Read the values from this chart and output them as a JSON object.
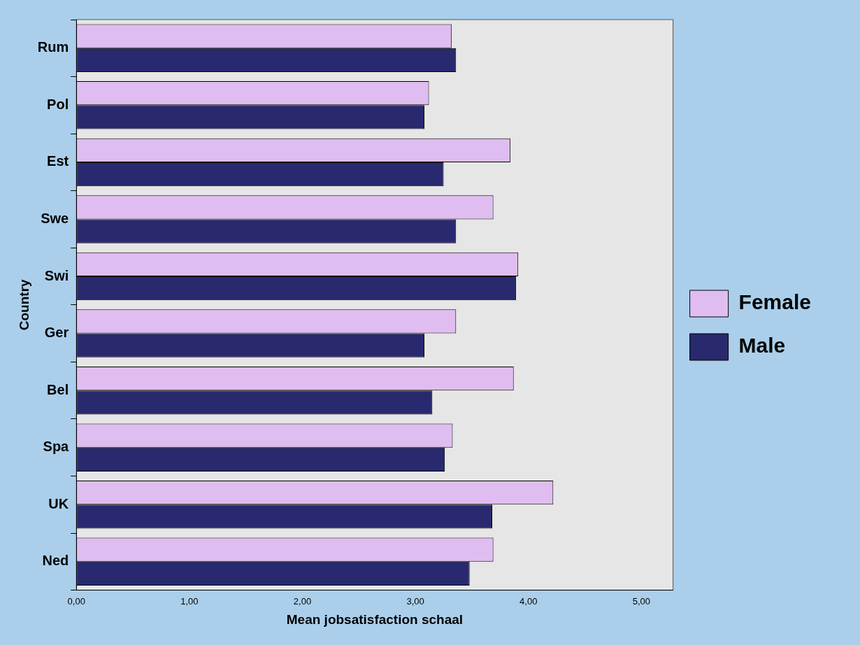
{
  "chart_data": {
    "type": "bar",
    "orientation": "horizontal",
    "xlabel": "Mean jobsatisfaction schaal",
    "ylabel": "Country",
    "categories": [
      "Rum",
      "Pol",
      "Est",
      "Swe",
      "Swi",
      "Ger",
      "Bel",
      "Spa",
      "UK",
      "Ned"
    ],
    "series": [
      {
        "name": "Female",
        "color": "#dfbdf0",
        "values": [
          3.32,
          3.12,
          3.84,
          3.69,
          3.91,
          3.36,
          3.87,
          3.33,
          4.22,
          3.69
        ]
      },
      {
        "name": "Male",
        "color": "#29296f",
        "values": [
          3.36,
          3.08,
          3.25,
          3.36,
          3.89,
          3.08,
          3.15,
          3.26,
          3.68,
          3.48
        ]
      }
    ],
    "xlim": [
      0,
      5.28
    ],
    "xticks": [
      {
        "value": 0,
        "label": "0,00"
      },
      {
        "value": 1,
        "label": "1,00"
      },
      {
        "value": 2,
        "label": "2,00"
      },
      {
        "value": 3,
        "label": "3,00"
      },
      {
        "value": 4,
        "label": "4,00"
      },
      {
        "value": 5,
        "label": "5,00"
      }
    ],
    "grid": false,
    "legend": "right"
  }
}
